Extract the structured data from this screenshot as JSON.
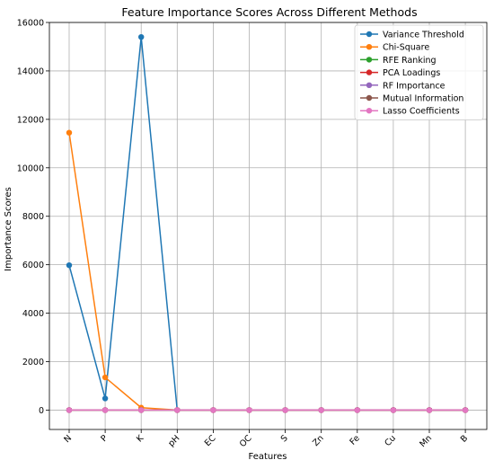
{
  "chart_data": {
    "type": "line",
    "title": "Feature Importance Scores Across Different Methods",
    "xlabel": "Features",
    "ylabel": "Importance Scores",
    "categories": [
      "N",
      "P",
      "K",
      "pH",
      "EC",
      "OC",
      "S",
      "Zn",
      "Fe",
      "Cu",
      "Mn",
      "B"
    ],
    "ylim": [
      -800,
      16000
    ],
    "yticks": [
      0,
      2000,
      4000,
      6000,
      8000,
      10000,
      12000,
      14000,
      16000
    ],
    "grid": true,
    "legend_position": "top-right",
    "series": [
      {
        "name": "Variance Threshold",
        "color": "#1f77b4",
        "values": [
          5980,
          480,
          15400,
          0,
          0,
          0,
          0,
          0,
          0,
          0,
          0,
          0
        ]
      },
      {
        "name": "Chi-Square",
        "color": "#ff7f0e",
        "values": [
          11450,
          1350,
          100,
          0,
          0,
          0,
          0,
          0,
          0,
          0,
          0,
          0
        ]
      },
      {
        "name": "RFE Ranking",
        "color": "#2ca02c",
        "values": [
          1,
          1,
          1,
          1,
          1,
          1,
          1,
          1,
          1,
          1,
          1,
          1
        ]
      },
      {
        "name": "PCA Loadings",
        "color": "#d62728",
        "values": [
          0,
          0,
          0,
          0,
          0,
          0,
          0,
          0,
          0,
          0,
          0,
          0
        ]
      },
      {
        "name": "RF Importance",
        "color": "#9467bd",
        "values": [
          0,
          0,
          0,
          0,
          0,
          0,
          0,
          0,
          0,
          0,
          0,
          0
        ]
      },
      {
        "name": "Mutual Information",
        "color": "#8c564b",
        "values": [
          0,
          0,
          0,
          0,
          0,
          0,
          0,
          0,
          0,
          0,
          0,
          0
        ]
      },
      {
        "name": "Lasso Coefficients",
        "color": "#e377c2",
        "values": [
          0,
          0,
          0,
          0,
          0,
          0,
          0,
          0,
          0,
          0,
          0,
          0
        ]
      }
    ]
  }
}
